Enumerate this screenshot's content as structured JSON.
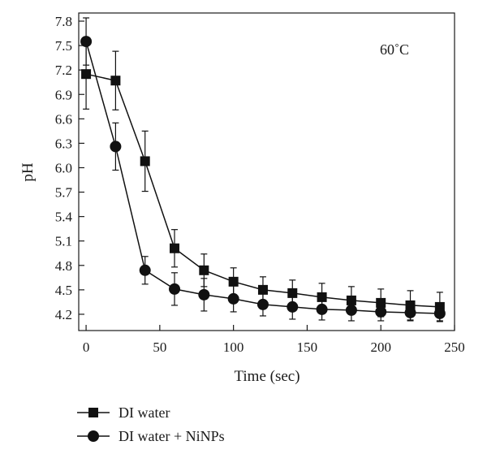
{
  "chart_data": {
    "type": "line",
    "xlabel": "Time (sec)",
    "ylabel": "pH",
    "annotation": "60˚C",
    "xlim": [
      -5,
      250
    ],
    "ylim": [
      4.0,
      7.9
    ],
    "x_ticks": [
      "0",
      "50",
      "100",
      "150",
      "200",
      "250"
    ],
    "y_ticks": [
      "4.2",
      "4.5",
      "4.8",
      "5.1",
      "5.4",
      "5.7",
      "6.0",
      "6.3",
      "6.6",
      "6.9",
      "7.2",
      "7.5",
      "7.8"
    ],
    "grid": false,
    "legend_position": "bottom-left",
    "x": [
      0,
      20,
      40,
      60,
      80,
      100,
      120,
      140,
      160,
      180,
      200,
      220,
      240
    ],
    "series": [
      {
        "name": "DI water",
        "marker": "square",
        "color": "#111111",
        "values": [
          7.15,
          7.07,
          6.08,
          5.01,
          4.74,
          4.6,
          4.5,
          4.46,
          4.41,
          4.37,
          4.34,
          4.31,
          4.29
        ],
        "error": [
          0.43,
          0.36,
          0.37,
          0.23,
          0.2,
          0.17,
          0.16,
          0.16,
          0.17,
          0.17,
          0.17,
          0.18,
          0.18
        ]
      },
      {
        "name": "DI water + NiNPs",
        "marker": "circle",
        "color": "#111111",
        "values": [
          7.55,
          6.26,
          4.74,
          4.51,
          4.44,
          4.39,
          4.32,
          4.29,
          4.26,
          4.25,
          4.23,
          4.22,
          4.21
        ],
        "error": [
          0.29,
          0.29,
          0.17,
          0.2,
          0.2,
          0.16,
          0.14,
          0.15,
          0.13,
          0.13,
          0.11,
          0.1,
          0.09
        ]
      }
    ]
  }
}
